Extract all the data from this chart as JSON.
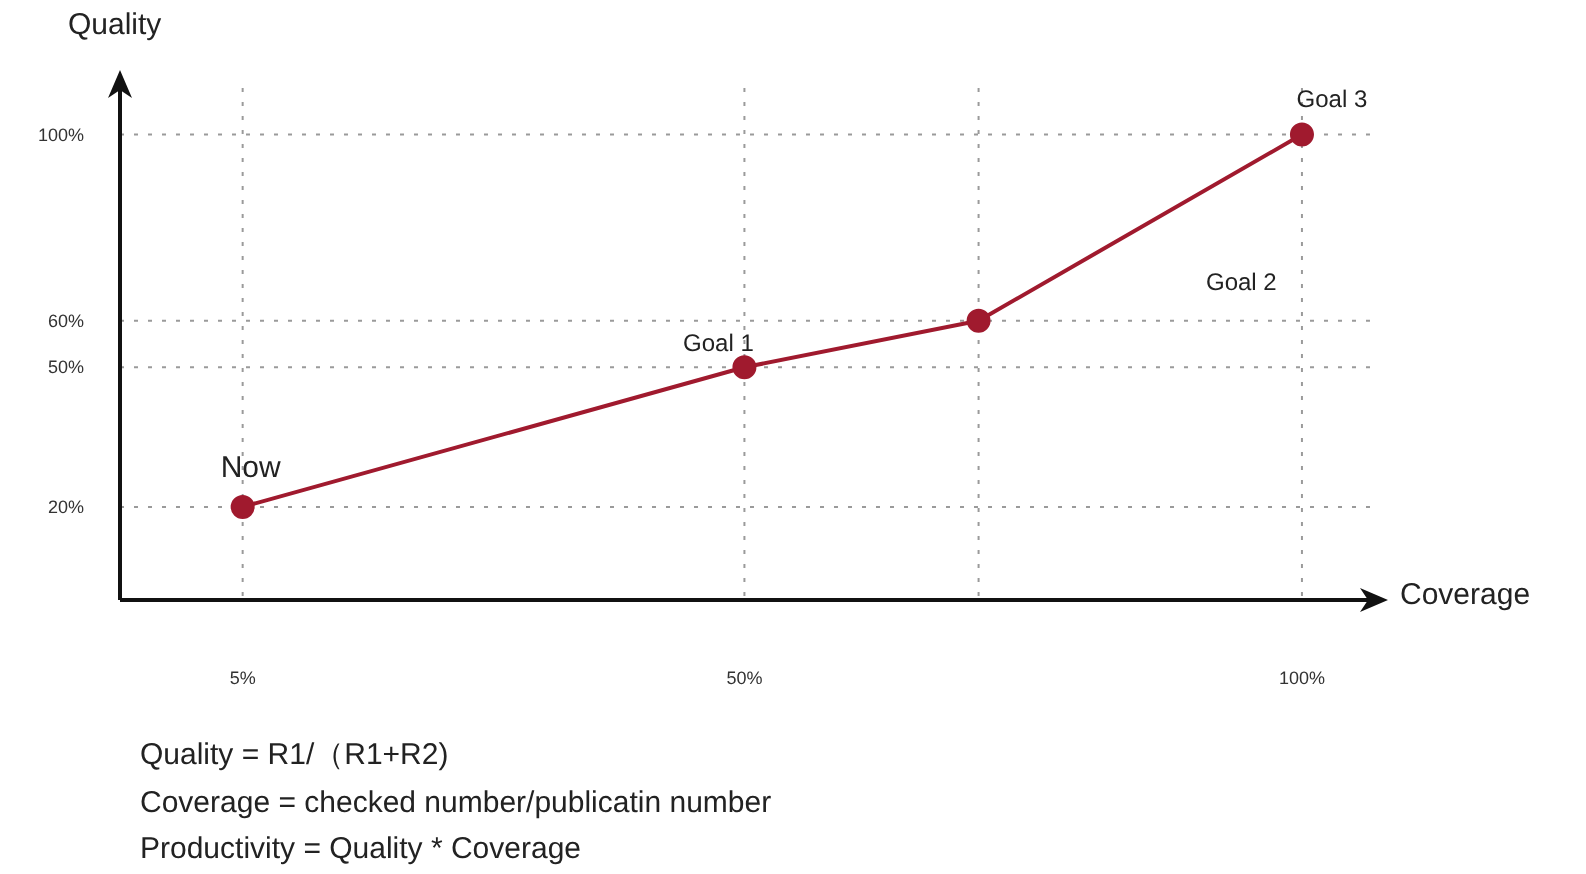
{
  "chart_data": {
    "type": "line",
    "xlabel": "Coverage",
    "ylabel": "Quality",
    "x": [
      5,
      50,
      71,
      100
    ],
    "series": [
      {
        "color": "#a01a2e",
        "values": [
          20,
          50,
          60,
          100
        ]
      }
    ],
    "xlim": [
      -6,
      107
    ],
    "ylim": [
      0,
      110
    ],
    "xticks": [
      {
        "value": 5,
        "label": "5%"
      },
      {
        "value": 50,
        "label": "50%"
      },
      {
        "value": 71,
        "label": null
      },
      {
        "value": 100,
        "label": "100%"
      }
    ],
    "yticks": [
      {
        "value": 20,
        "label": "20%"
      },
      {
        "value": 50,
        "label": "50%"
      },
      {
        "value": 60,
        "label": "60%"
      },
      {
        "value": 100,
        "label": "100%"
      }
    ],
    "grid": true,
    "marker": "circle",
    "line_style": "solid",
    "annotations": [
      {
        "text": "Now",
        "x": 5,
        "y": 20
      },
      {
        "text": "Goal 1",
        "x": 50,
        "y": 50
      },
      "Goal 2",
      {
        "text": "Goal 3",
        "x": 100,
        "y": 100
      },
      "Quality = R1/（R1+R2)",
      "Coverage = checked number/publicatin number",
      "Productivity = Quality * Coverage"
    ]
  }
}
